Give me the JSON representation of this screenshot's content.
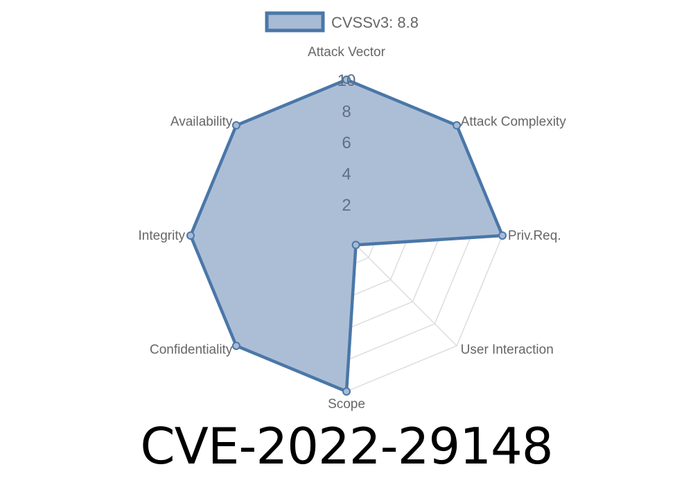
{
  "chart_data": {
    "type": "radar",
    "categories": [
      "Attack Vector",
      "Attack Complexity",
      "Priv.Req.",
      "User Interaction",
      "Scope",
      "Confidentiality",
      "Integrity",
      "Availability"
    ],
    "series": [
      {
        "name": "CVSSv3: 8.8",
        "values": [
          10,
          10,
          10,
          0.85,
          10,
          10,
          10,
          10
        ]
      }
    ],
    "rlim": [
      0,
      10
    ],
    "ticks": [
      "2",
      "4",
      "6",
      "8",
      "10"
    ],
    "grid": true,
    "legend": "top",
    "colors": {
      "stroke": "#4a77a8",
      "fill": "#a8bbd4",
      "grid": "#dddddd",
      "label": "#666666"
    }
  },
  "title": "CVE-2022-29148"
}
